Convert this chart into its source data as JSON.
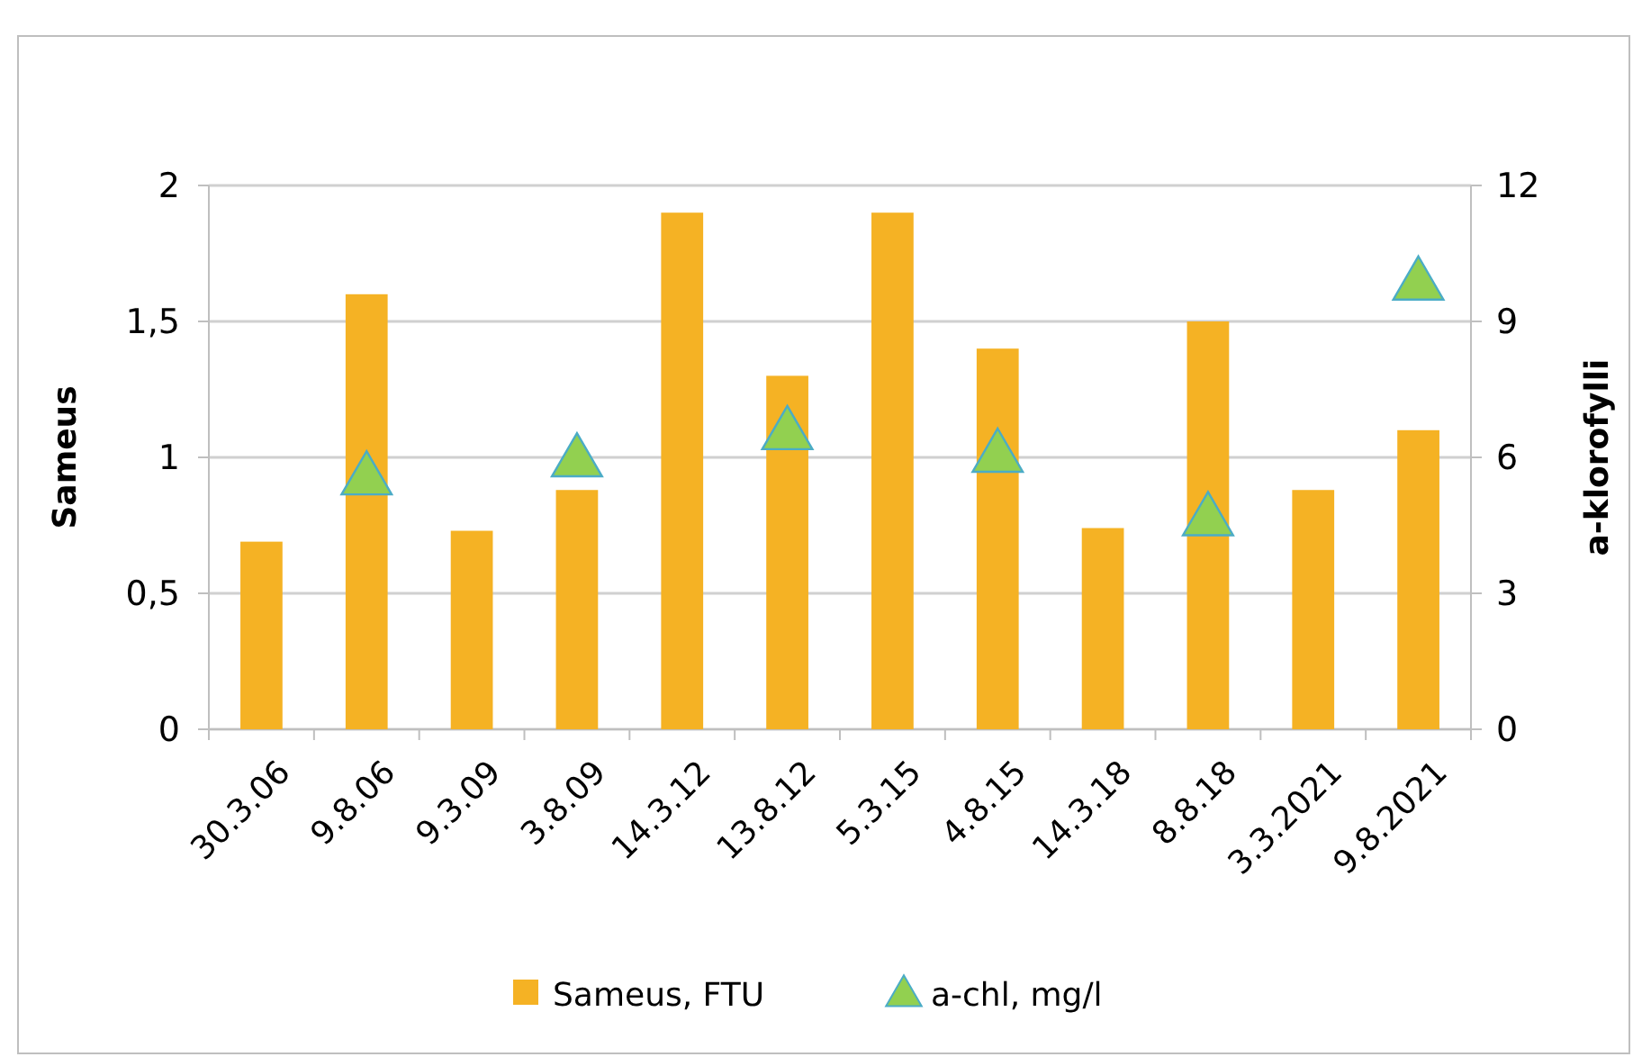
{
  "chart_data": {
    "type": "bar",
    "ylabel": "Sameus",
    "y2label": "a-klorofylli",
    "categories": [
      "30.3.06",
      "9.8.06",
      "9.3.09",
      "3.8.09",
      "14.3.12",
      "13.8.12",
      "5.3.15",
      "4.8.15",
      "14.3.18",
      "8.8.18",
      "3.3.2021",
      "9.8.2021"
    ],
    "series": [
      {
        "name": "Sameus, FTU",
        "type": "bar",
        "color": "#f5b224",
        "values": [
          0.69,
          1.6,
          0.73,
          0.88,
          1.9,
          1.3,
          1.9,
          1.4,
          0.74,
          1.5,
          0.88,
          1.1
        ]
      },
      {
        "name": "a-chl, mg/l",
        "type": "scatter",
        "axis": "y2",
        "marker": "triangle",
        "color": "#92d050",
        "values": [
          null,
          5.5,
          null,
          5.9,
          null,
          6.5,
          null,
          6.0,
          null,
          4.6,
          null,
          9.8
        ]
      }
    ],
    "ylim": [
      0,
      2
    ],
    "yticks": [
      0,
      {
        "value": 0.5,
        "label": "0,5"
      },
      1,
      {
        "value": 1.5,
        "label": "1,5"
      },
      2
    ],
    "y2lim": [
      0,
      12
    ],
    "y2ticks": [
      0,
      3,
      6,
      9,
      12
    ],
    "grid": "y",
    "legend": "bottom"
  }
}
